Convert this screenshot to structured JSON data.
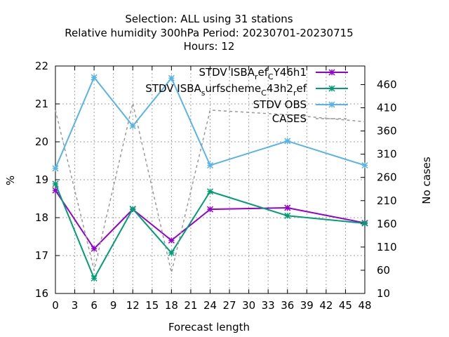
{
  "chart_data": {
    "type": "line",
    "title_lines": [
      "Selection: ALL using    31 stations",
      "Relative humidity 300hPa   Period: 20230701-20230715",
      "Hours:  12"
    ],
    "xlabel": "Forecast length",
    "ylabel": "%",
    "y2label": "No cases",
    "xlim": [
      0,
      48
    ],
    "ylim": [
      16,
      22
    ],
    "y2lim": [
      10,
      500
    ],
    "x_ticks": [
      "0",
      "3",
      "6",
      "9",
      "12",
      "15",
      "18",
      "21",
      "24",
      "27",
      "30",
      "33",
      "36",
      "39",
      "42",
      "45",
      "48"
    ],
    "y_ticks": [
      "16",
      "17",
      "18",
      "19",
      "20",
      "21",
      "22"
    ],
    "y2_ticks": [
      "10",
      "60",
      "110",
      "160",
      "210",
      "260",
      "310",
      "360",
      "410",
      "460"
    ],
    "grid": true,
    "legend_position": "top-right",
    "series": [
      {
        "name": "STDV ISBA_ref_C_Y46h1",
        "legend_parts": [
          {
            "t": "STDV ISBA",
            "sub": false
          },
          {
            "t": "r",
            "sub": true
          },
          {
            "t": "ef",
            "sub": false
          },
          {
            "t": "C",
            "sub": true
          },
          {
            "t": "Y46h1",
            "sub": false
          }
        ],
        "color": "#9400d3",
        "axis": "y1",
        "x": [
          0,
          6,
          12,
          18,
          24,
          36,
          48
        ],
        "values": [
          18.72,
          17.18,
          18.22,
          17.4,
          18.22,
          18.26,
          17.86
        ]
      },
      {
        "name": "STDV ISBA_surfscheme_C_43h2_ref",
        "legend_parts": [
          {
            "t": "STDV ISBA",
            "sub": false
          },
          {
            "t": "s",
            "sub": true
          },
          {
            "t": "urfscheme",
            "sub": false
          },
          {
            "t": "C",
            "sub": true
          },
          {
            "t": "43h2",
            "sub": false
          },
          {
            "t": "r",
            "sub": true
          },
          {
            "t": "ef",
            "sub": false
          }
        ],
        "color": "#009e73",
        "axis": "y1",
        "x": [
          0,
          6,
          12,
          18,
          24,
          36,
          48
        ],
        "values": [
          18.89,
          16.4,
          18.23,
          17.07,
          18.69,
          18.05,
          17.85
        ]
      },
      {
        "name": "STDV OBS",
        "legend_parts": [
          {
            "t": "STDV OBS",
            "sub": false
          }
        ],
        "color": "#56b4e9",
        "axis": "y1",
        "x": [
          0,
          6,
          12,
          18,
          24,
          36,
          48
        ],
        "values": [
          19.3,
          21.7,
          20.42,
          21.68,
          19.38,
          20.02,
          19.38
        ]
      },
      {
        "name": "CASES",
        "legend_parts": [
          {
            "t": "CASES",
            "sub": false
          }
        ],
        "color": "#999999",
        "axis": "y2",
        "dashed": true,
        "x": [
          0,
          6,
          12,
          18,
          24,
          36,
          48
        ],
        "values": [
          405,
          60,
          420,
          55,
          405,
          395,
          380
        ]
      }
    ]
  }
}
